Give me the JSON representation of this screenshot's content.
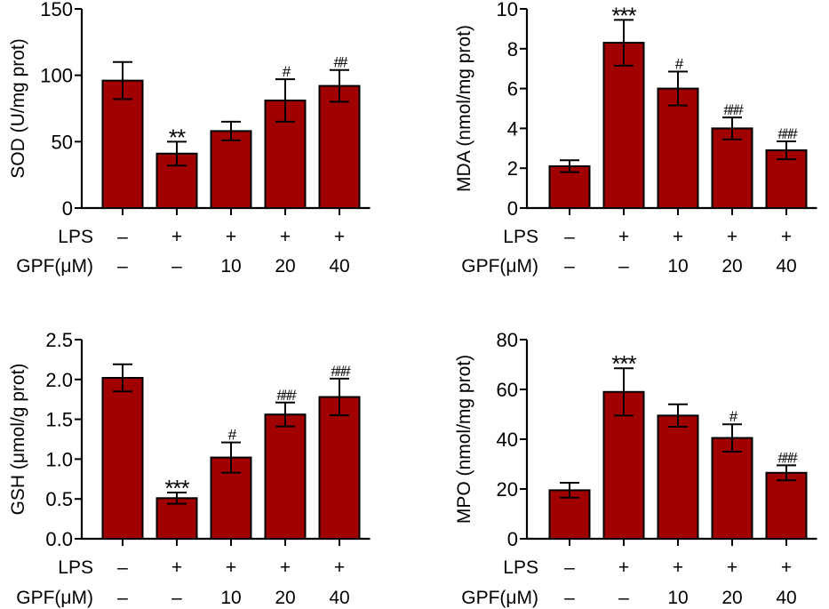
{
  "figure": {
    "bar_color": "#a00000",
    "edge_color": "#000000",
    "row_labels": [
      "LPS",
      "GPF(μM)"
    ],
    "conditions": {
      "LPS": [
        "–",
        "+",
        "+",
        "+",
        "+"
      ],
      "GPF": [
        "–",
        "–",
        "10",
        "20",
        "40"
      ]
    }
  },
  "chart_data": [
    {
      "type": "bar",
      "panel": "top-left",
      "title": "",
      "ylabel": "SOD (U/mg prot)",
      "xlabel": "",
      "ylim": [
        0,
        150
      ],
      "yticks": [
        0,
        50,
        100,
        150
      ],
      "ytick_labels": [
        "0",
        "50",
        "100",
        "150"
      ],
      "categories": [
        "LPS– GPF–",
        "LPS+ GPF–",
        "LPS+ GPF10",
        "LPS+ GPF20",
        "LPS+ GPF40"
      ],
      "values": [
        96,
        41,
        58,
        81,
        92
      ],
      "errors": [
        14,
        9,
        7,
        16,
        12
      ],
      "annotations": [
        "",
        "**",
        "",
        "#",
        "##"
      ],
      "grid": false
    },
    {
      "type": "bar",
      "panel": "top-right",
      "title": "",
      "ylabel": "MDA (nmol/mg prot)",
      "xlabel": "",
      "ylim": [
        0,
        10
      ],
      "yticks": [
        0,
        2,
        4,
        6,
        8,
        10
      ],
      "ytick_labels": [
        "0",
        "2",
        "4",
        "6",
        "8",
        "10"
      ],
      "categories": [
        "LPS– GPF–",
        "LPS+ GPF–",
        "LPS+ GPF10",
        "LPS+ GPF20",
        "LPS+ GPF40"
      ],
      "values": [
        2.1,
        8.3,
        6.0,
        4.0,
        2.9
      ],
      "errors": [
        0.3,
        1.15,
        0.85,
        0.55,
        0.45
      ],
      "annotations": [
        "",
        "***",
        "#",
        "###",
        "###"
      ],
      "grid": false
    },
    {
      "type": "bar",
      "panel": "bottom-left",
      "title": "",
      "ylabel": "GSH (μmol/g prot)",
      "xlabel": "",
      "ylim": [
        0,
        2.5
      ],
      "yticks": [
        0,
        0.5,
        1.0,
        1.5,
        2.0,
        2.5
      ],
      "ytick_labels": [
        "0.0",
        "0.5",
        "1.0",
        "1.5",
        "2.0",
        "2.5"
      ],
      "categories": [
        "LPS– GPF–",
        "LPS+ GPF–",
        "LPS+ GPF10",
        "LPS+ GPF20",
        "LPS+ GPF40"
      ],
      "values": [
        2.02,
        0.51,
        1.02,
        1.56,
        1.78
      ],
      "errors": [
        0.17,
        0.07,
        0.19,
        0.15,
        0.23
      ],
      "annotations": [
        "",
        "***",
        "#",
        "###",
        "###"
      ],
      "grid": false
    },
    {
      "type": "bar",
      "panel": "bottom-right",
      "title": "",
      "ylabel": "MPO (nmol/mg prot)",
      "xlabel": "",
      "ylim": [
        0,
        80
      ],
      "yticks": [
        0,
        20,
        40,
        60,
        80
      ],
      "ytick_labels": [
        "0",
        "20",
        "40",
        "60",
        "80"
      ],
      "categories": [
        "LPS– GPF–",
        "LPS+ GPF–",
        "LPS+ GPF10",
        "LPS+ GPF20",
        "LPS+ GPF40"
      ],
      "values": [
        19.5,
        59,
        49.5,
        40.5,
        26.5
      ],
      "errors": [
        3,
        9.5,
        4.5,
        5.5,
        3
      ],
      "annotations": [
        "",
        "***",
        "",
        "#",
        "###"
      ],
      "grid": false
    }
  ]
}
